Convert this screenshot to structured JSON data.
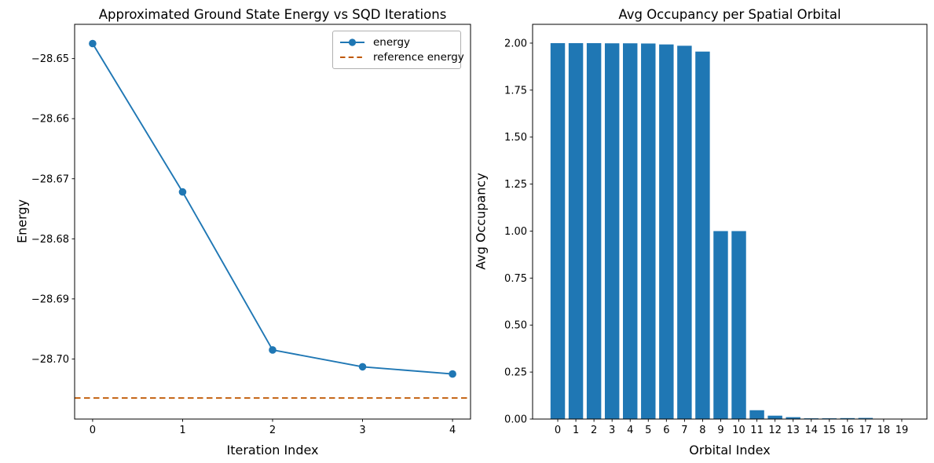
{
  "figure": {
    "background": "#ffffff",
    "text_color": "#000000",
    "spine_color": "#000000"
  },
  "chart_data": [
    {
      "type": "line",
      "title": "Approximated Ground State Energy vs SQD Iterations",
      "xlabel": "Iteration Index",
      "ylabel": "Energy",
      "x": [
        0,
        1,
        2,
        3,
        4
      ],
      "series": [
        {
          "name": "energy",
          "values": [
            -28.6475,
            -28.6722,
            -28.6985,
            -28.7013,
            -28.7025
          ],
          "color": "#1f77b4",
          "marker": "circle",
          "line_style": "solid"
        }
      ],
      "reference_line": {
        "name": "reference energy",
        "value": -28.7065,
        "color": "#bf5700",
        "line_style": "dashed"
      },
      "xlim": [
        -0.2,
        4.2
      ],
      "ylim": [
        -28.71,
        -28.6443
      ],
      "xticks": [
        0,
        1,
        2,
        3,
        4
      ],
      "xtick_labels": [
        "0",
        "1",
        "2",
        "3",
        "4"
      ],
      "yticks": [
        -28.65,
        -28.66,
        -28.67,
        -28.68,
        -28.69,
        -28.7
      ],
      "ytick_labels": [
        "−28.65",
        "−28.66",
        "−28.67",
        "−28.68",
        "−28.69",
        "−28.70"
      ],
      "legend_position": "upper right",
      "grid": false
    },
    {
      "type": "bar",
      "title": "Avg Occupancy per Spatial Orbital",
      "xlabel": "Orbital Index",
      "ylabel": "Avg Occupancy",
      "categories": [
        "0",
        "1",
        "2",
        "3",
        "4",
        "5",
        "6",
        "7",
        "8",
        "9",
        "10",
        "11",
        "12",
        "13",
        "14",
        "15",
        "16",
        "17",
        "18",
        "19"
      ],
      "values": [
        2.0,
        2.0,
        2.0,
        1.999,
        1.999,
        1.998,
        1.993,
        1.986,
        1.955,
        1.0,
        1.0,
        0.047,
        0.018,
        0.01,
        0.004,
        0.004,
        0.005,
        0.006,
        0.001,
        0.001
      ],
      "bar_color": "#1f77b4",
      "xlim": [
        -1.39,
        20.39
      ],
      "ylim": [
        0,
        2.1
      ],
      "yticks": [
        0.0,
        0.25,
        0.5,
        0.75,
        1.0,
        1.25,
        1.5,
        1.75,
        2.0
      ],
      "ytick_labels": [
        "0.00",
        "0.25",
        "0.50",
        "0.75",
        "1.00",
        "1.25",
        "1.50",
        "1.75",
        "2.00"
      ],
      "grid": false
    }
  ]
}
